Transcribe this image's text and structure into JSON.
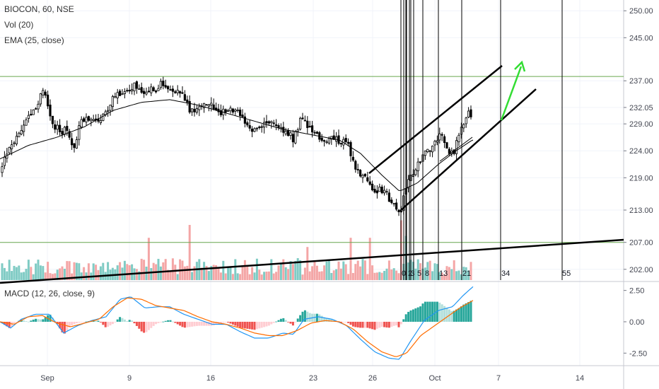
{
  "legend": {
    "symbol_line": "BIOCON, 60, NSE",
    "volume_line": "Vol (20)",
    "ema_line": "EMA (25, close)",
    "macd_line": "MACD (12, 26, close, 9)"
  },
  "colors": {
    "bull": "#26a69a",
    "bear": "#ef5350",
    "candle": "#000000",
    "vol_bull": "#7fcbc4",
    "vol_bear": "#f4a6a6",
    "macd_line": "#2196f3",
    "signal_line": "#ff6d00",
    "hist_pos_strong": "#26a69a",
    "hist_pos_weak": "#b2dfdb",
    "hist_neg_strong": "#ef5350",
    "hist_neg_weak": "#ffcdd2",
    "horizontal_level": "#6aa84f",
    "arrow": "#33dd33"
  },
  "chart_data": [
    {
      "type": "candlestick",
      "title": "BIOCON, 60, NSE",
      "price_axis_ticks": [
        250.0,
        245.0,
        237.0,
        232.05,
        229.0,
        224.0,
        219.0,
        213.0,
        207.0,
        202.0
      ],
      "ylim": [
        200,
        252
      ],
      "x_tick_labels": [
        "Sep",
        "9",
        "16",
        "23",
        "26",
        "Oct",
        "7",
        "14"
      ],
      "horizontal_levels": [
        237.8,
        207.0
      ],
      "fib_time_labels": [
        "0",
        "2",
        "3",
        "5",
        "8",
        "13",
        "21",
        "34",
        "55"
      ],
      "ema_label": "EMA (25, close)",
      "volume_label": "Vol (20)",
      "close_path": [
        [
          0,
          220.0
        ],
        [
          10,
          223.5
        ],
        [
          20,
          226.0
        ],
        [
          30,
          228.5
        ],
        [
          45,
          231.0
        ],
        [
          55,
          233.5
        ],
        [
          63,
          236.0
        ],
        [
          70,
          230.0
        ],
        [
          80,
          228.0
        ],
        [
          95,
          227.5
        ],
        [
          105,
          225.0
        ],
        [
          115,
          229.5
        ],
        [
          130,
          230.5
        ],
        [
          145,
          230.0
        ],
        [
          160,
          234.0
        ],
        [
          175,
          235.5
        ],
        [
          190,
          236.0
        ],
        [
          205,
          234.5
        ],
        [
          220,
          235.5
        ],
        [
          230,
          236.5
        ],
        [
          245,
          235.0
        ],
        [
          260,
          234.0
        ],
        [
          268,
          231.5
        ],
        [
          280,
          232.0
        ],
        [
          300,
          232.5
        ],
        [
          315,
          231.0
        ],
        [
          330,
          232.0
        ],
        [
          345,
          229.5
        ],
        [
          360,
          228.0
        ],
        [
          375,
          229.5
        ],
        [
          390,
          228.5
        ],
        [
          405,
          227.5
        ],
        [
          415,
          226.0
        ],
        [
          425,
          229.5
        ],
        [
          435,
          228.5
        ],
        [
          445,
          227.0
        ],
        [
          460,
          226.5
        ],
        [
          475,
          226.0
        ],
        [
          490,
          225.5
        ],
        [
          500,
          222.0
        ],
        [
          510,
          219.5
        ],
        [
          520,
          218.0
        ],
        [
          530,
          217.0
        ],
        [
          545,
          216.0
        ],
        [
          560,
          214.0
        ],
        [
          567,
          213.0
        ],
        [
          575,
          217.5
        ],
        [
          590,
          221.5
        ],
        [
          600,
          223.5
        ],
        [
          612,
          224.5
        ],
        [
          622,
          227.5
        ],
        [
          632,
          224.5
        ],
        [
          640,
          223.0
        ],
        [
          648,
          226.5
        ],
        [
          655,
          228.5
        ],
        [
          662,
          230.5
        ],
        [
          669,
          231.5
        ]
      ],
      "ema_points": [
        [
          0,
          222.5
        ],
        [
          40,
          225.0
        ],
        [
          80,
          226.5
        ],
        [
          120,
          228.5
        ],
        [
          160,
          231.5
        ],
        [
          200,
          233.0
        ],
        [
          240,
          233.5
        ],
        [
          280,
          232.5
        ],
        [
          320,
          231.0
        ],
        [
          360,
          229.5
        ],
        [
          400,
          228.0
        ],
        [
          440,
          227.0
        ],
        [
          480,
          226.0
        ],
        [
          510,
          223.5
        ],
        [
          540,
          219.5
        ],
        [
          565,
          216.5
        ],
        [
          590,
          218.0
        ],
        [
          620,
          221.5
        ],
        [
          645,
          224.0
        ],
        [
          668,
          226.0
        ]
      ]
    },
    {
      "type": "bar",
      "title": "Vol (20)",
      "spikes": [
        [
          211,
          4.6
        ],
        [
          268,
          6.0
        ],
        [
          435,
          3.6
        ],
        [
          497,
          4.6
        ],
        [
          525,
          4.6
        ],
        [
          568,
          6.5
        ],
        [
          573,
          4.8
        ]
      ]
    },
    {
      "type": "line",
      "title": "MACD (12, 26, close, 9)",
      "y_tick_labels": [
        "2.50",
        "0.00",
        "-2.50"
      ],
      "ylim": [
        -3.5,
        3.1
      ],
      "series": [
        {
          "points": [
            [
              0,
              0.0
            ],
            [
              15,
              -0.5
            ],
            [
              30,
              0.2
            ],
            [
              50,
              0.6
            ],
            [
              70,
              0.6
            ],
            [
              90,
              -0.9
            ],
            [
              110,
              -0.3
            ],
            [
              130,
              0.1
            ],
            [
              150,
              0.4
            ],
            [
              170,
              1.8
            ],
            [
              185,
              2.0
            ],
            [
              205,
              1.1
            ],
            [
              225,
              1.2
            ],
            [
              240,
              1.2
            ],
            [
              260,
              0.6
            ],
            [
              280,
              0.2
            ],
            [
              300,
              -0.2
            ],
            [
              320,
              -0.2
            ],
            [
              340,
              -0.8
            ],
            [
              360,
              -1.3
            ],
            [
              380,
              -1.3
            ],
            [
              400,
              -0.9
            ],
            [
              415,
              -1.0
            ],
            [
              430,
              0.2
            ],
            [
              450,
              0.4
            ],
            [
              470,
              0.2
            ],
            [
              490,
              -0.3
            ],
            [
              510,
              -1.4
            ],
            [
              530,
              -2.4
            ],
            [
              550,
              -2.9
            ],
            [
              565,
              -3.0
            ],
            [
              580,
              -1.6
            ],
            [
              600,
              0.1
            ],
            [
              620,
              0.9
            ],
            [
              640,
              1.2
            ],
            [
              655,
              2.1
            ],
            [
              669,
              2.8
            ]
          ]
        },
        {
          "points": [
            [
              0,
              0.0
            ],
            [
              20,
              -0.2
            ],
            [
              40,
              0.4
            ],
            [
              60,
              0.5
            ],
            [
              80,
              -0.1
            ],
            [
              100,
              -0.4
            ],
            [
              120,
              -0.1
            ],
            [
              140,
              0.2
            ],
            [
              160,
              1.2
            ],
            [
              180,
              1.9
            ],
            [
              200,
              1.8
            ],
            [
              220,
              1.3
            ],
            [
              240,
              1.1
            ],
            [
              260,
              0.9
            ],
            [
              280,
              0.4
            ],
            [
              300,
              0.0
            ],
            [
              320,
              -0.2
            ],
            [
              340,
              -0.5
            ],
            [
              360,
              -0.9
            ],
            [
              380,
              -1.1
            ],
            [
              400,
              -1.1
            ],
            [
              420,
              -0.7
            ],
            [
              440,
              -0.1
            ],
            [
              460,
              0.1
            ],
            [
              480,
              0.0
            ],
            [
              500,
              -0.6
            ],
            [
              520,
              -1.6
            ],
            [
              540,
              -2.4
            ],
            [
              560,
              -2.8
            ],
            [
              575,
              -2.5
            ],
            [
              595,
              -1.1
            ],
            [
              615,
              -0.3
            ],
            [
              635,
              0.5
            ],
            [
              650,
              1.1
            ],
            [
              669,
              1.7
            ]
          ]
        }
      ]
    }
  ]
}
